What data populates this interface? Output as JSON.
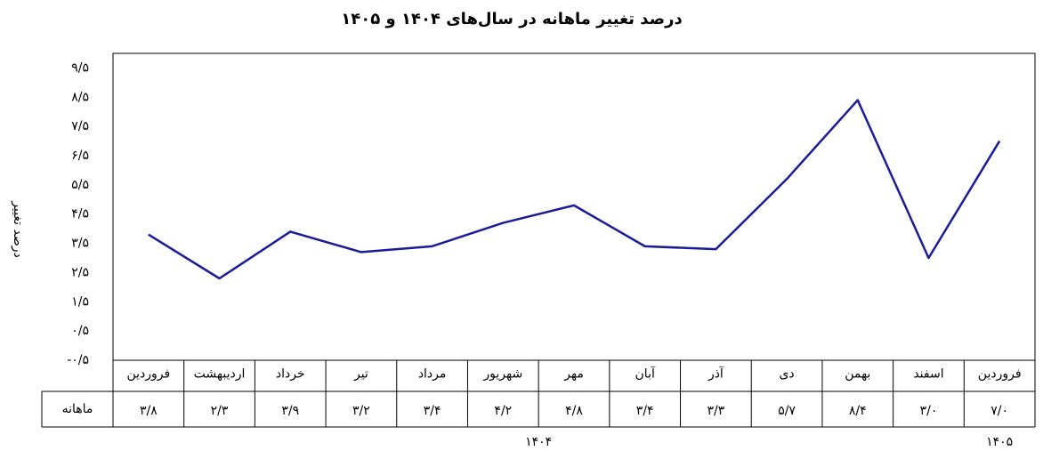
{
  "chart_data": {
    "type": "line",
    "title": "درصد تغییر ماهانه در سال‌های ۱۴۰۴ و ۱۴۰۵",
    "y_label": "درصد تغییر",
    "row_label": "ماهانه",
    "groups": [
      "۱۴۰۴",
      "۱۴۰۵"
    ],
    "categories": [
      "فروردین",
      "اردیبهشت",
      "خرداد",
      "تیر",
      "مرداد",
      "شهریور",
      "مهر",
      "آبان",
      "آذر",
      "دی",
      "بهمن",
      "اسفند",
      "فروردین"
    ],
    "series": [
      {
        "name": "ماهانه",
        "color": "#1c1c96",
        "values": [
          3.8,
          2.3,
          3.9,
          3.2,
          3.4,
          4.2,
          4.8,
          3.4,
          3.3,
          5.7,
          8.4,
          3.0,
          7.0
        ],
        "value_labels": [
          "۳/۸",
          "۲/۳",
          "۳/۹",
          "۳/۲",
          "۳/۴",
          "۴/۲",
          "۴/۸",
          "۳/۴",
          "۳/۳",
          "۵/۷",
          "۸/۴",
          "۳/۰",
          "۷/۰"
        ]
      }
    ],
    "ylim": [
      -0.5,
      10
    ],
    "yticks": [
      {
        "value": -0.5,
        "label": "-۰/۵"
      },
      {
        "value": 0.5,
        "label": "۰/۵"
      },
      {
        "value": 1.5,
        "label": "۱/۵"
      },
      {
        "value": 2.5,
        "label": "۲/۵"
      },
      {
        "value": 3.5,
        "label": "۳/۵"
      },
      {
        "value": 4.5,
        "label": "۴/۵"
      },
      {
        "value": 5.5,
        "label": "۵/۵"
      },
      {
        "value": 6.5,
        "label": "۶/۵"
      },
      {
        "value": 7.5,
        "label": "۷/۵"
      },
      {
        "value": 8.5,
        "label": "۸/۵"
      },
      {
        "value": 9.5,
        "label": "۹/۵"
      }
    ],
    "grid": false
  }
}
